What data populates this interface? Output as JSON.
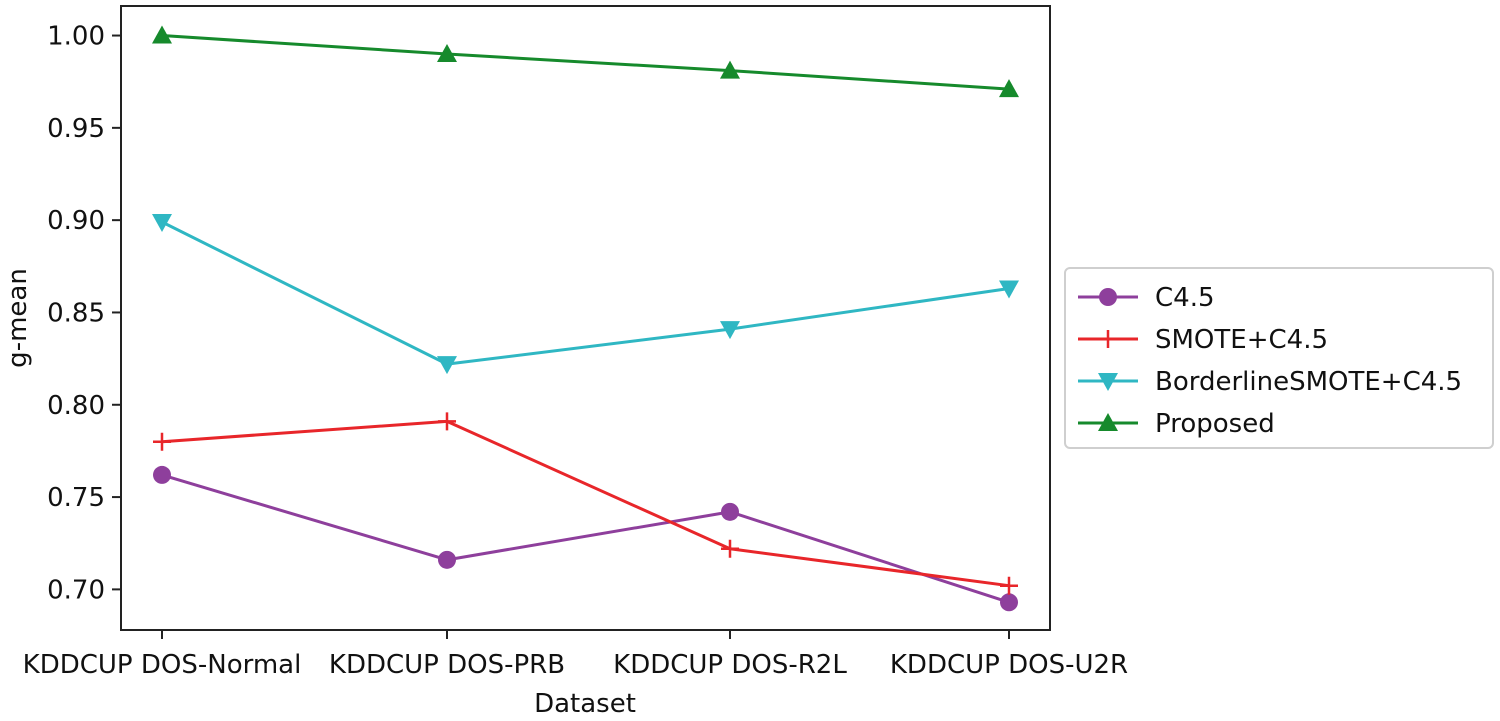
{
  "chart_data": {
    "type": "line",
    "title": "",
    "xlabel": "Dataset",
    "ylabel": "g-mean",
    "categories": [
      "KDDCUP DOS-Normal",
      "KDDCUP DOS-PRB",
      "KDDCUP DOS-R2L",
      "KDDCUP DOS-U2R"
    ],
    "ylim": [
      0.678,
      1.016
    ],
    "yticks": [
      0.7,
      0.75,
      0.8,
      0.85,
      0.9,
      0.95,
      1.0
    ],
    "ytick_labels": [
      "0.70",
      "0.75",
      "0.80",
      "0.85",
      "0.90",
      "0.95",
      "1.00"
    ],
    "grid": false,
    "legend_position": "right, outside plot area",
    "series": [
      {
        "name": "C4.5",
        "values": [
          0.762,
          0.716,
          0.742,
          0.693
        ],
        "color": "#8e3f9c",
        "marker": "circle"
      },
      {
        "name": "SMOTE+C4.5",
        "values": [
          0.78,
          0.791,
          0.722,
          0.702
        ],
        "color": "#e8262a",
        "marker": "plus"
      },
      {
        "name": "BorderlineSMOTE+C4.5",
        "values": [
          0.899,
          0.822,
          0.841,
          0.863
        ],
        "color": "#2fb7c3",
        "marker": "triangle-down"
      },
      {
        "name": "Proposed",
        "values": [
          1.0,
          0.99,
          0.981,
          0.971
        ],
        "color": "#168a2c",
        "marker": "triangle-up"
      }
    ]
  }
}
